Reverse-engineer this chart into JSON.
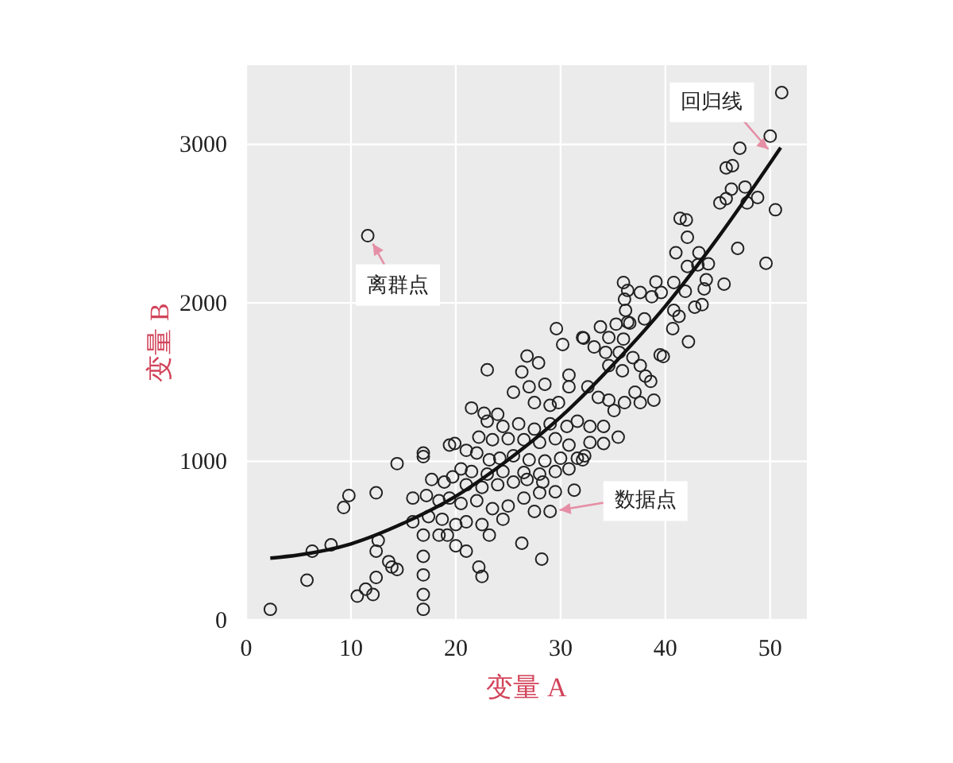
{
  "chart_data": {
    "type": "scatter",
    "xlabel": "变量 A",
    "ylabel": "变量 B",
    "xlim": [
      0,
      53.5
    ],
    "ylim": [
      0,
      3500
    ],
    "xticks": [
      0,
      10,
      20,
      30,
      40,
      50
    ],
    "yticks": [
      0,
      1000,
      2000,
      3000
    ],
    "grid": true,
    "marker": "circle",
    "annotations": [
      {
        "text": "离群点",
        "x": 11.6,
        "y": 2424
      },
      {
        "text": "回归线",
        "x": 50.5,
        "y": 2930
      },
      {
        "text": "数据点",
        "x": 29.0,
        "y": 685
      }
    ],
    "series": [
      {
        "color": "#222222",
        "x": [
          51.1,
          50.0,
          47.1,
          45.8,
          46.4,
          47.6,
          46.3,
          45.2,
          45.8,
          47.8,
          48.8,
          50.5,
          41.4,
          42.0,
          42.1,
          46.9,
          49.6,
          11.6,
          41.0,
          43.2,
          44.1,
          43.1,
          42.1,
          45.6,
          43.9,
          43.7,
          40.8,
          41.9,
          39.1,
          39.6,
          38.7,
          37.6,
          36.0,
          36.4,
          36.1,
          42.8,
          43.5,
          40.8,
          41.3,
          36.2,
          38.0,
          36.4,
          29.6,
          33.8,
          35.3,
          36.6,
          32.1,
          34.6,
          36.0,
          40.7,
          42.2,
          30.2,
          23.0,
          26.8,
          27.9,
          26.3,
          32.2,
          33.2,
          34.3,
          35.6,
          36.9,
          34.6,
          35.9,
          37.6,
          38.1,
          39.5,
          39.8,
          38.6,
          37.1,
          36.1,
          38.9,
          37.6,
          30.8,
          30.8,
          32.6,
          33.6,
          34.6,
          35.1,
          25.5,
          27.0,
          28.5,
          27.5,
          29.0,
          29.8,
          21.5,
          22.7,
          24.0,
          23.0,
          24.5,
          26.0,
          27.5,
          29.0,
          30.6,
          31.6,
          32.8,
          34.1,
          35.5,
          34.1,
          32.8,
          22.2,
          23.5,
          25.0,
          26.5,
          28.0,
          29.5,
          30.8,
          19.4,
          19.9,
          21.0,
          22.0,
          23.2,
          24.2,
          25.5,
          27.0,
          28.5,
          30.0,
          31.6,
          32.3,
          32.1,
          16.9,
          16.9,
          14.4,
          20.5,
          21.5,
          23.0,
          24.5,
          26.5,
          28.0,
          29.5,
          30.8,
          31.3,
          17.7,
          18.9,
          19.7,
          21.0,
          22.5,
          24.0,
          25.5,
          26.8,
          28.3,
          29.5,
          28.0,
          29.0,
          9.8,
          9.3,
          12.4,
          15.9,
          17.2,
          18.4,
          19.4,
          20.5,
          22.0,
          23.5,
          25.0,
          26.5,
          27.5,
          15.9,
          17.4,
          18.7,
          20.0,
          21.0,
          22.5,
          23.2,
          24.5,
          26.3,
          6.3,
          8.1,
          12.6,
          12.4,
          16.9,
          18.4,
          19.2,
          20.0,
          21.0,
          16.9,
          5.8,
          12.4,
          13.6,
          14.4,
          13.9,
          16.9,
          22.2,
          22.5,
          28.2,
          2.3,
          10.6,
          11.4,
          12.1,
          16.9,
          16.9
        ],
        "values": [
          3327,
          3052,
          2976,
          2852,
          2866,
          2731,
          2718,
          2631,
          2658,
          2631,
          2665,
          2588,
          2534,
          2524,
          2414,
          2344,
          2250,
          2424,
          2317,
          2317,
          2247,
          2240,
          2230,
          2119,
          2146,
          2089,
          2129,
          2073,
          2133,
          2066,
          2039,
          2066,
          2129,
          2079,
          2023,
          1973,
          1989,
          1953,
          1916,
          1953,
          1899,
          1879,
          1838,
          1849,
          1866,
          1873,
          1782,
          1782,
          1772,
          1838,
          1755,
          1738,
          1578,
          1665,
          1622,
          1565,
          1778,
          1722,
          1688,
          1688,
          1655,
          1605,
          1572,
          1605,
          1538,
          1672,
          1662,
          1505,
          1437,
          1371,
          1387,
          1371,
          1545,
          1471,
          1471,
          1404,
          1387,
          1321,
          1437,
          1471,
          1487,
          1371,
          1354,
          1371,
          1337,
          1304,
          1297,
          1254,
          1221,
          1237,
          1204,
          1237,
          1221,
          1254,
          1221,
          1221,
          1153,
          1113,
          1120,
          1153,
          1137,
          1143,
          1137,
          1120,
          1143,
          1103,
          1103,
          1113,
          1070,
          1053,
          1010,
          1020,
          1036,
          1010,
          1003,
          1020,
          1020,
          1036,
          1010,
          1053,
          1030,
          986,
          953,
          936,
          920,
          936,
          930,
          920,
          936,
          953,
          819,
          886,
          870,
          903,
          853,
          836,
          853,
          870,
          886,
          870,
          809,
          802,
          685,
          785,
          709,
          802,
          769,
          785,
          752,
          769,
          735,
          752,
          702,
          719,
          769,
          685,
          619,
          652,
          635,
          602,
          619,
          602,
          535,
          635,
          484,
          434,
          474,
          501,
          434,
          535,
          535,
          535,
          468,
          434,
          401,
          251,
          268,
          368,
          318,
          334,
          284,
          334,
          274,
          384,
          67,
          150,
          194,
          160,
          160,
          67
        ]
      },
      {
        "type": "line",
        "color": "#111111",
        "marker": "none",
        "x": [
          2.3,
          5,
          10,
          15,
          20,
          25,
          30,
          35,
          40,
          45,
          51
        ],
        "values": [
          390,
          410,
          480,
          610,
          780,
          1010,
          1280,
          1610,
          1980,
          2410,
          2980
        ]
      }
    ]
  }
}
